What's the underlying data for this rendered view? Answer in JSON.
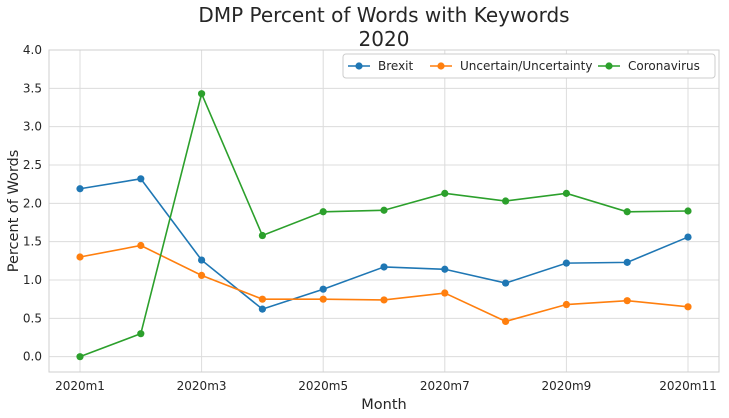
{
  "chart_data": {
    "type": "line",
    "title": [
      "DMP Percent of Words with Keywords",
      "2020"
    ],
    "xlabel": "Month",
    "ylabel": "Percent of Words",
    "categories": [
      "2020m1",
      "2020m2",
      "2020m3",
      "2020m4",
      "2020m5",
      "2020m6",
      "2020m7",
      "2020m8",
      "2020m9",
      "2020m10",
      "2020m11"
    ],
    "xticks": [
      "2020m1",
      "2020m3",
      "2020m5",
      "2020m7",
      "2020m9",
      "2020m11"
    ],
    "ylim": [
      -0.2,
      4.0
    ],
    "yticks": [
      "0.0",
      "0.5",
      "1.0",
      "1.5",
      "2.0",
      "2.5",
      "3.0",
      "3.5",
      "4.0"
    ],
    "grid": true,
    "legend_position": "top-right",
    "series": [
      {
        "name": "Brexit",
        "color": "#1f77b4",
        "values": [
          2.19,
          2.32,
          1.26,
          0.62,
          0.88,
          1.17,
          1.14,
          0.96,
          1.22,
          1.23,
          1.56
        ]
      },
      {
        "name": "Uncertain/Uncertainty",
        "color": "#ff7f0e",
        "values": [
          1.3,
          1.45,
          1.06,
          0.75,
          0.75,
          0.74,
          0.83,
          0.46,
          0.68,
          0.73,
          0.65
        ]
      },
      {
        "name": "Coronavirus",
        "color": "#2ca02c",
        "values": [
          0.0,
          0.3,
          3.43,
          1.58,
          1.89,
          1.91,
          2.13,
          2.03,
          2.13,
          1.89,
          1.9
        ]
      }
    ]
  }
}
